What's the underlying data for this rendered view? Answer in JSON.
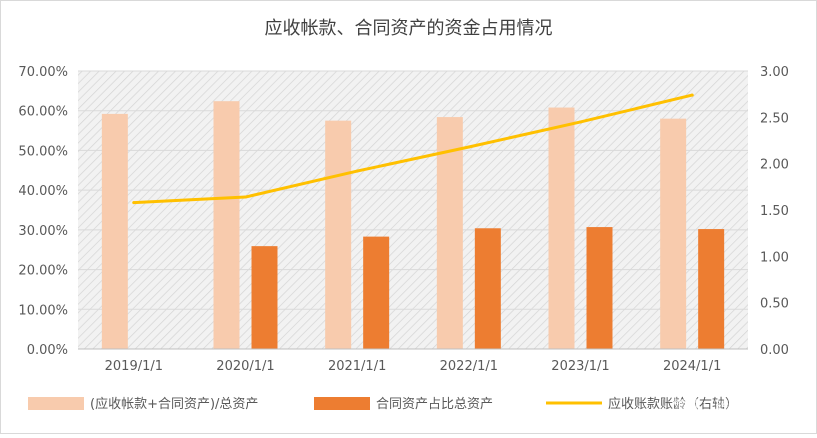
{
  "chart_data": {
    "type": "bar",
    "title": "应收帐款、合同资产的资金占用情况",
    "categories": [
      "2019/1/1",
      "2020/1/1",
      "2021/1/1",
      "2022/1/1",
      "2023/1/1",
      "2024/1/1"
    ],
    "series": [
      {
        "name": "(应收帐款+合同资产)/总资产",
        "type": "bar",
        "axis": "left",
        "color": "#F8CBAD",
        "values": [
          0.592,
          0.624,
          0.575,
          0.584,
          0.608,
          0.58
        ]
      },
      {
        "name": "合同资产占比总资产",
        "type": "bar",
        "axis": "left",
        "color": "#ED7D31",
        "values": [
          null,
          0.259,
          0.283,
          0.304,
          0.307,
          0.302
        ]
      },
      {
        "name": "应收账款账龄（右轴）",
        "type": "line",
        "axis": "right",
        "color": "#FFC000",
        "values": [
          1.58,
          1.64,
          1.92,
          2.18,
          2.45,
          2.74
        ]
      }
    ],
    "y_left": {
      "ylim": [
        0,
        0.7
      ],
      "ticks": [
        "0.00%",
        "10.00%",
        "20.00%",
        "30.00%",
        "40.00%",
        "50.00%",
        "60.00%",
        "70.00%"
      ]
    },
    "y_right": {
      "ylim": [
        0,
        3
      ],
      "ticks": [
        "0.00",
        "0.50",
        "1.00",
        "1.50",
        "2.00",
        "2.50",
        "3.00"
      ]
    },
    "grid": true,
    "legend_position": "bottom",
    "watermark": "雪球：转债小园"
  }
}
